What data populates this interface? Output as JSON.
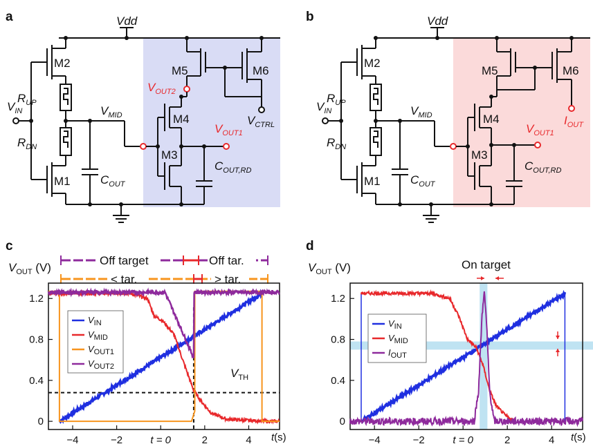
{
  "panels": {
    "a": "a",
    "b": "b",
    "c": "c",
    "d": "d"
  },
  "circuit": {
    "vdd": "Vdd",
    "vin": "V",
    "vin_sub": "IN",
    "m1": "M1",
    "m2": "M2",
    "m3": "M3",
    "m4": "M4",
    "m5": "M5",
    "m6": "M6",
    "rup": "R",
    "rup_sub": "UP",
    "rdn": "R",
    "rdn_sub": "DN",
    "vmid": "V",
    "vmid_sub": "MID",
    "cout": "C",
    "cout_sub": "OUT",
    "coutrd": "C",
    "coutrd_sub": "OUT,RD",
    "vout1": "V",
    "vout1_sub": "OUT1",
    "vout2": "V",
    "vout2_sub": "OUT2",
    "vctrl": "V",
    "vctrl_sub": "CTRL",
    "iout": "I",
    "iout_sub": "OUT",
    "shade_a": "#d9dcf5",
    "shade_b": "#fbdada"
  },
  "colors": {
    "vin": "#1f2fe0",
    "vmid": "#e8282b",
    "vout1": "#f7941d",
    "vout2": "#8e2a9c",
    "band": "#bfe3f2"
  },
  "chart_data": [
    {
      "type": "line",
      "ylabel": "V",
      "ylabel_sub": "OUT",
      "ylabel_unit": " (V)",
      "xlabel": "t",
      "xlabel_unit": "(s)",
      "xlim": [
        -5.1,
        5.4
      ],
      "ylim": [
        -0.08,
        1.35
      ],
      "xticks": [
        -4,
        -2,
        0,
        2,
        4
      ],
      "xtick_labels": [
        "−4",
        "−2",
        "t = 0",
        "2",
        "4"
      ],
      "yticks": [
        0,
        0.4,
        0.8,
        1.2
      ],
      "ytick_labels": [
        "0",
        "0.4",
        "0.8",
        "1.2"
      ],
      "threshold_label": "V",
      "threshold_sub": "TH",
      "annotations": {
        "off_target": "Off target",
        "off_tar": "Off tar.",
        "lt_tar": "< tar.",
        "gt_tar": "> tar."
      },
      "legend": "upper-left",
      "series": [
        {
          "name": "V",
          "sub": "IN",
          "x": [
            -4.6,
            4.6
          ],
          "y": [
            0,
            1.25
          ]
        },
        {
          "name": "V",
          "sub": "MID",
          "x": [
            -5.1,
            -1.4,
            -0.6,
            -0.3,
            0.1,
            0.6,
            1.0,
            1.5,
            1.9,
            2.3,
            3.0,
            4.8,
            5.4
          ],
          "y": [
            1.25,
            1.25,
            1.2,
            1.03,
            0.98,
            0.85,
            0.6,
            0.3,
            0.18,
            0.08,
            0.02,
            0.0,
            0.0
          ]
        },
        {
          "name": "V",
          "sub": "OUT1",
          "x": [
            -5.1,
            -4.6,
            -4.6,
            1.4,
            1.55,
            1.55,
            4.6,
            4.6,
            5.4
          ],
          "y": [
            1.27,
            1.27,
            0.0,
            0.0,
            0.1,
            1.27,
            1.27,
            0.0,
            0.0
          ]
        },
        {
          "name": "V",
          "sub": "OUT2",
          "x": [
            -5.1,
            0.2,
            1.5,
            1.5,
            5.4
          ],
          "y": [
            1.26,
            1.26,
            0.62,
            1.26,
            1.26
          ]
        }
      ]
    },
    {
      "type": "line",
      "ylabel": "V",
      "ylabel_sub": "OUT",
      "ylabel_unit": " (V)",
      "xlabel": "t",
      "xlabel_unit": "(s)",
      "xlim": [
        -5.1,
        5.4
      ],
      "ylim": [
        -0.08,
        1.35
      ],
      "xticks": [
        -4,
        -2,
        0,
        2,
        4
      ],
      "xtick_labels": [
        "−4",
        "−2",
        "t = 0",
        "2",
        "4"
      ],
      "yticks": [
        0,
        0.4,
        0.8,
        1.2
      ],
      "ytick_labels": [
        "0",
        "0.4",
        "0.8",
        "1.2"
      ],
      "annotations": {
        "on_target": "On target"
      },
      "legend": "lower-left",
      "series": [
        {
          "name": "V",
          "sub": "IN",
          "x": [
            -4.6,
            4.6
          ],
          "y": [
            0,
            1.25
          ]
        },
        {
          "name": "V",
          "sub": "MID",
          "x": [
            -4.6,
            -1.4,
            -0.6,
            -0.2,
            0.2,
            0.6,
            0.9,
            1.2,
            1.5,
            1.9,
            2.3
          ],
          "y": [
            1.25,
            1.25,
            1.2,
            1.03,
            0.8,
            0.72,
            0.55,
            0.3,
            0.15,
            0.06,
            0.0
          ]
        },
        {
          "name": "I",
          "sub": "OUT",
          "x": [
            -5.1,
            0.5,
            0.7,
            0.85,
            0.95,
            1.05,
            1.2,
            1.4,
            5.4
          ],
          "y": [
            0.0,
            0.0,
            0.3,
            1.0,
            1.28,
            1.0,
            0.3,
            0.0,
            0.0
          ]
        }
      ]
    }
  ]
}
